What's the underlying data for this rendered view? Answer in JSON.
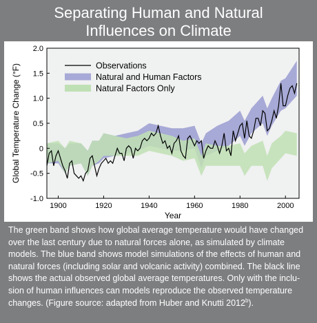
{
  "title_line1": "Separating Human and Natural",
  "title_line2": "Influences on Climate",
  "caption_main": "The green band shows how global average temperature would have changed over the last century due to natural forces alone, as simulated by climate models. The blue band shows model simulations of the effects of human and natural forces (including solar and volcanic activity) combined. The black line shows the actual observed global average temperatures. Only with the inclu-sion of human influences can models reproduce the observed temperature changes. (Figure source: adapted from Huber and Knutti 2012",
  "caption_sup": "b",
  "caption_end": ").",
  "colors": {
    "background": "#7d7e80",
    "plot_bg": "#f0f1f1",
    "natural_human_band": "#a7a9d6",
    "natural_band": "#bfe0b4",
    "observations": "#000000"
  },
  "chart_data": {
    "type": "area",
    "xlabel": "Year",
    "ylabel": "Global Temperature Change (°F)",
    "xlim": [
      1895,
      2006
    ],
    "ylim": [
      -1.0,
      2.0
    ],
    "xticks": [
      "1900",
      "1920",
      "1940",
      "1960",
      "1980",
      "2000"
    ],
    "yticks": [
      "-1.0",
      "-0.5",
      "0",
      "0.5",
      "1.0",
      "1.5",
      "2.0"
    ],
    "legend_position": "top-left",
    "legend": [
      "Observations",
      "Natural and Human Factors",
      "Natural Factors Only"
    ],
    "bands": [
      {
        "name": "Natural and Human Factors",
        "x": [
          1895,
          1900,
          1903,
          1905,
          1910,
          1913,
          1915,
          1918,
          1920,
          1925,
          1930,
          1935,
          1940,
          1945,
          1950,
          1955,
          1960,
          1963,
          1965,
          1970,
          1975,
          1980,
          1982,
          1985,
          1990,
          1992,
          1994,
          1998,
          2000,
          2005
        ],
        "upper": [
          0.1,
          0.1,
          0.0,
          0.1,
          0.1,
          -0.05,
          0.15,
          0.15,
          0.3,
          0.25,
          0.3,
          0.35,
          0.5,
          0.45,
          0.4,
          0.4,
          0.45,
          0.1,
          0.3,
          0.45,
          0.55,
          0.75,
          0.55,
          0.8,
          1.05,
          0.8,
          1.0,
          1.35,
          1.4,
          1.75
        ],
        "lower": [
          -0.3,
          -0.3,
          -0.5,
          -0.35,
          -0.3,
          -0.55,
          -0.35,
          -0.3,
          -0.2,
          -0.15,
          -0.1,
          -0.05,
          0.05,
          0.0,
          -0.05,
          -0.05,
          0.0,
          -0.4,
          -0.15,
          -0.05,
          0.05,
          0.25,
          0.05,
          0.3,
          0.5,
          0.25,
          0.45,
          0.75,
          0.8,
          1.05
        ]
      },
      {
        "name": "Natural Factors Only",
        "x": [
          1895,
          1900,
          1903,
          1905,
          1910,
          1913,
          1915,
          1918,
          1920,
          1925,
          1930,
          1935,
          1940,
          1945,
          1950,
          1955,
          1960,
          1963,
          1965,
          1970,
          1975,
          1980,
          1982,
          1985,
          1990,
          1992,
          1994,
          1998,
          2000,
          2005
        ],
        "upper": [
          0.1,
          0.15,
          0.0,
          0.15,
          0.1,
          -0.05,
          0.15,
          0.15,
          0.3,
          0.25,
          0.2,
          0.25,
          0.35,
          0.3,
          0.25,
          0.15,
          0.2,
          -0.15,
          0.1,
          0.05,
          0.05,
          0.1,
          -0.1,
          0.05,
          0.15,
          -0.15,
          0.1,
          0.25,
          0.35,
          0.3
        ],
        "lower": [
          -0.3,
          -0.25,
          -0.5,
          -0.35,
          -0.3,
          -0.55,
          -0.35,
          -0.25,
          -0.15,
          -0.15,
          -0.15,
          -0.15,
          -0.05,
          -0.1,
          -0.15,
          -0.25,
          -0.2,
          -0.55,
          -0.35,
          -0.35,
          -0.35,
          -0.35,
          -0.55,
          -0.35,
          -0.35,
          -0.65,
          -0.4,
          -0.2,
          -0.1,
          -0.15
        ]
      }
    ],
    "series": [
      {
        "name": "Observations",
        "x": [
          1895,
          1896,
          1897,
          1898,
          1899,
          1900,
          1901,
          1902,
          1903,
          1904,
          1905,
          1906,
          1907,
          1908,
          1909,
          1910,
          1911,
          1912,
          1913,
          1914,
          1915,
          1916,
          1917,
          1918,
          1919,
          1920,
          1921,
          1922,
          1923,
          1924,
          1925,
          1926,
          1927,
          1928,
          1929,
          1930,
          1931,
          1932,
          1933,
          1934,
          1935,
          1936,
          1937,
          1938,
          1939,
          1940,
          1941,
          1942,
          1943,
          1944,
          1945,
          1946,
          1947,
          1948,
          1949,
          1950,
          1951,
          1952,
          1953,
          1954,
          1955,
          1956,
          1957,
          1958,
          1959,
          1960,
          1961,
          1962,
          1963,
          1964,
          1965,
          1966,
          1967,
          1968,
          1969,
          1970,
          1971,
          1972,
          1973,
          1974,
          1975,
          1976,
          1977,
          1978,
          1979,
          1980,
          1981,
          1982,
          1983,
          1984,
          1985,
          1986,
          1987,
          1988,
          1989,
          1990,
          1991,
          1992,
          1993,
          1994,
          1995,
          1996,
          1997,
          1998,
          1999,
          2000,
          2001,
          2002,
          2003,
          2004,
          2005
        ],
        "values": [
          -0.35,
          -0.1,
          -0.05,
          -0.35,
          -0.15,
          -0.05,
          -0.2,
          -0.35,
          -0.45,
          -0.6,
          -0.3,
          -0.25,
          -0.5,
          -0.55,
          -0.6,
          -0.55,
          -0.65,
          -0.5,
          -0.45,
          -0.2,
          -0.15,
          -0.35,
          -0.55,
          -0.4,
          -0.3,
          -0.25,
          -0.2,
          -0.3,
          -0.25,
          -0.3,
          -0.15,
          0.0,
          -0.1,
          -0.1,
          -0.25,
          0.0,
          0.05,
          0.0,
          -0.2,
          0.0,
          -0.05,
          0.0,
          0.15,
          0.2,
          0.15,
          0.2,
          0.3,
          0.25,
          0.3,
          0.45,
          0.25,
          0.1,
          0.15,
          0.0,
          0.05,
          -0.1,
          0.1,
          0.15,
          0.25,
          -0.05,
          -0.15,
          -0.2,
          0.2,
          0.25,
          0.15,
          0.05,
          0.15,
          0.1,
          0.15,
          -0.2,
          -0.05,
          0.05,
          0.0,
          0.0,
          0.15,
          0.05,
          -0.1,
          0.05,
          0.3,
          -0.05,
          0.0,
          -0.15,
          0.35,
          0.15,
          0.3,
          0.45,
          0.5,
          0.2,
          0.55,
          0.25,
          0.2,
          0.35,
          0.6,
          0.6,
          0.45,
          0.75,
          0.7,
          0.35,
          0.4,
          0.55,
          0.75,
          0.6,
          0.85,
          1.3,
          0.85,
          0.85,
          1.05,
          1.2,
          1.25,
          1.1,
          1.3
        ]
      }
    ]
  }
}
